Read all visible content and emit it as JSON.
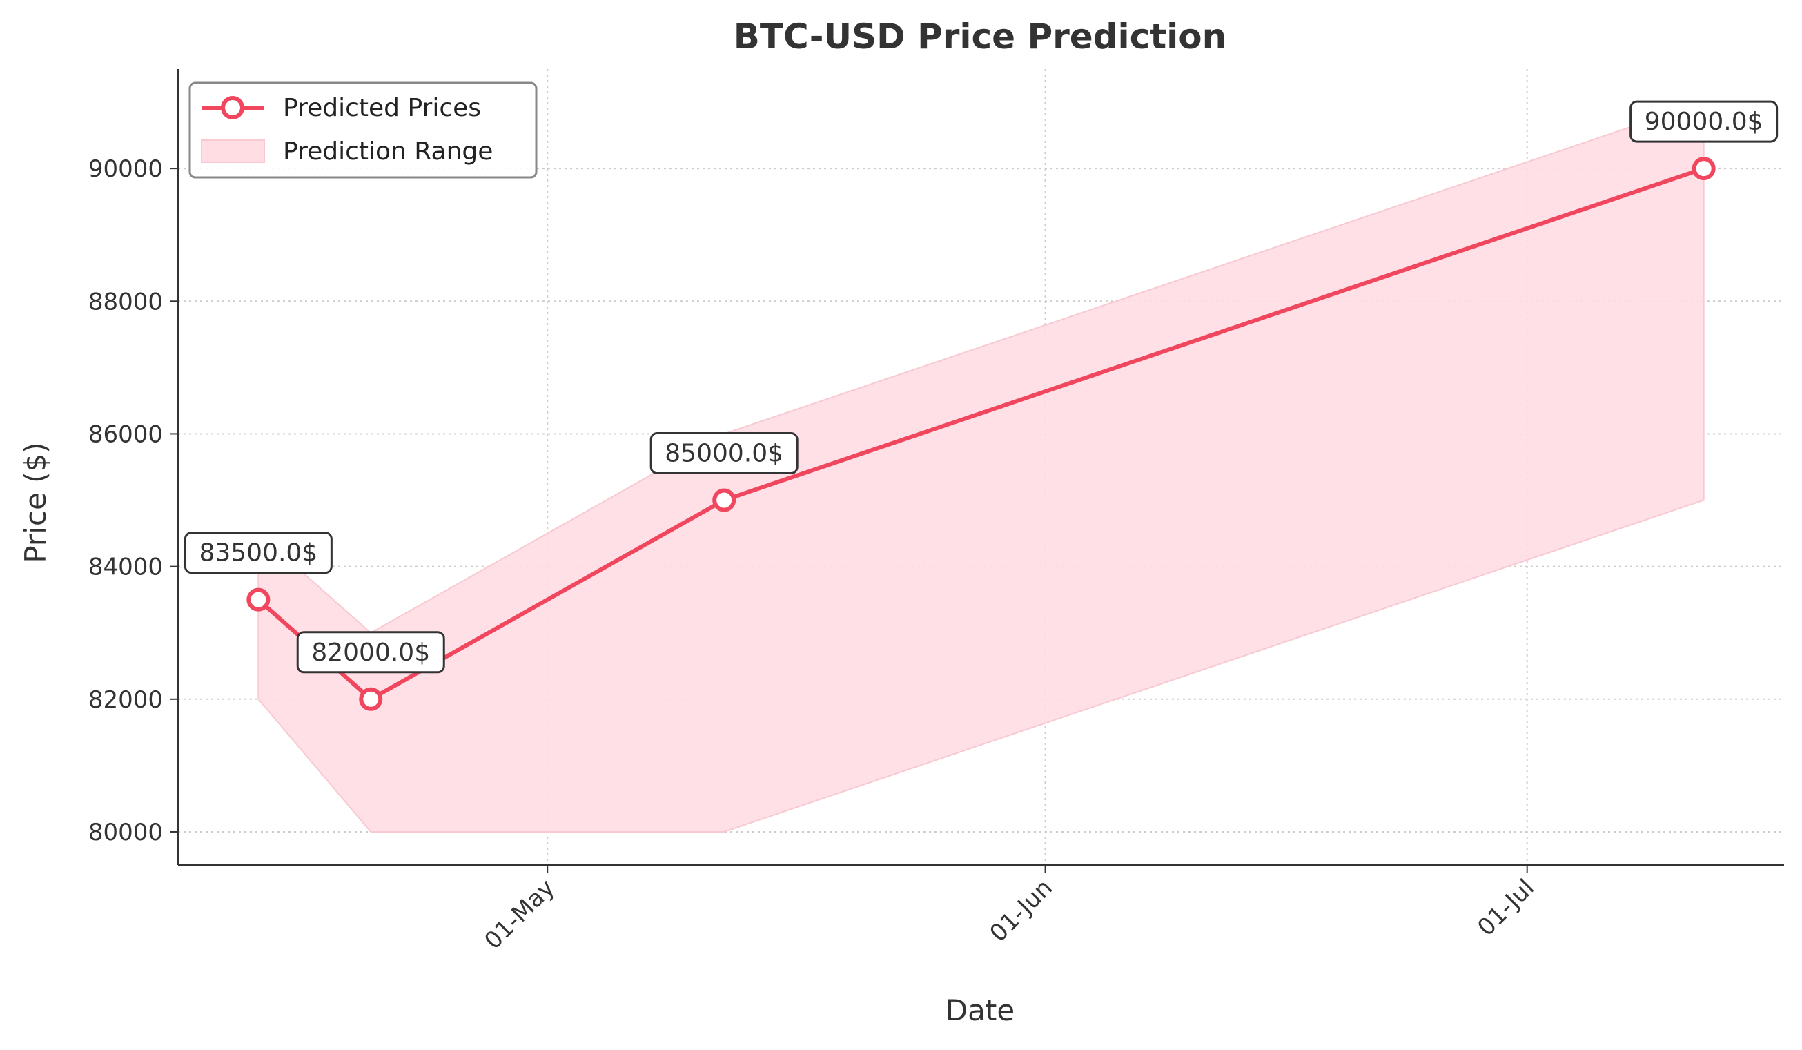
{
  "chart_data": {
    "type": "line",
    "title": "BTC-USD Price Prediction",
    "xlabel": "Date",
    "ylabel": "Price ($)",
    "x_tick_labels": [
      "01-May",
      "01-Jun",
      "01-Jul"
    ],
    "x_ticks": [
      "2025-05-01",
      "2025-06-01",
      "2025-07-01"
    ],
    "y_tick_labels": [
      "80000",
      "82000",
      "84000",
      "86000",
      "88000",
      "90000"
    ],
    "y_ticks": [
      80000,
      82000,
      84000,
      86000,
      88000,
      90000
    ],
    "xlim": [
      "2025-04-08",
      "2025-07-17"
    ],
    "ylim": [
      79500,
      91500
    ],
    "grid": true,
    "legend_position": "upper-left",
    "series": [
      {
        "name": "Predicted Prices",
        "kind": "line",
        "color": "#f0475f",
        "x": [
          "2025-04-13",
          "2025-04-20",
          "2025-05-12",
          "2025-07-12"
        ],
        "values": [
          83500,
          82000,
          85000,
          90000
        ]
      },
      {
        "name": "Prediction Range",
        "kind": "band",
        "color": "#ffdde3",
        "x": [
          "2025-04-13",
          "2025-04-20",
          "2025-05-12",
          "2025-07-12"
        ],
        "lower": [
          82000,
          80000,
          80000,
          85000
        ],
        "upper": [
          84500,
          83000,
          86000,
          91000
        ]
      }
    ],
    "annotations": [
      "83500.0$",
      "82000.0$",
      "85000.0$",
      "90000.0$"
    ]
  }
}
